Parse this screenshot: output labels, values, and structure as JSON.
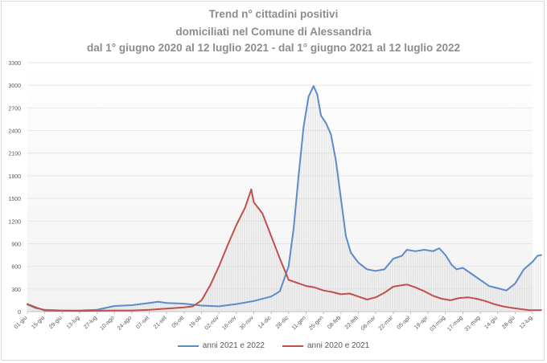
{
  "chart_data": {
    "type": "line",
    "title_lines": [
      "Trend n° cittadini positivi",
      "domiciliati nel Comune di Alessandria",
      "dal 1° giugno 2020 al 12 luglio 2021 - dal 1° giugno 2021 al 12 luglio 2022"
    ],
    "ylim": [
      0,
      3300
    ],
    "yticks": [
      0,
      300,
      600,
      900,
      1200,
      1500,
      1800,
      2100,
      2400,
      2700,
      3000,
      3300
    ],
    "x_tick_labels": [
      "01-giu",
      "15-giu",
      "29-giu",
      "13-lug",
      "27-lug",
      "10-ago",
      "24-ago",
      "07-set",
      "21-set",
      "05-ott",
      "19-ott",
      "02-nov",
      "16-nov",
      "30-nov",
      "14-dic",
      "28-dic",
      "11-gen",
      "25-gen",
      "08-feb",
      "22-feb",
      "08-mar",
      "22-mar",
      "05-apr",
      "19-apr",
      "03-mag",
      "17-mag",
      "31-mag",
      "14-giu",
      "28-giu",
      "12-lug"
    ],
    "x_range_days": [
      0,
      406
    ],
    "grid": "horizontal",
    "legend_position": "bottom",
    "series": [
      {
        "name": "anni 2021 e 2022",
        "color": "#5b8cc8",
        "points": [
          [
            0,
            95
          ],
          [
            7,
            45
          ],
          [
            14,
            25
          ],
          [
            28,
            15
          ],
          [
            42,
            15
          ],
          [
            56,
            25
          ],
          [
            70,
            75
          ],
          [
            84,
            85
          ],
          [
            98,
            115
          ],
          [
            105,
            130
          ],
          [
            112,
            115
          ],
          [
            126,
            105
          ],
          [
            140,
            80
          ],
          [
            154,
            70
          ],
          [
            168,
            100
          ],
          [
            182,
            140
          ],
          [
            196,
            200
          ],
          [
            203,
            270
          ],
          [
            210,
            600
          ],
          [
            214,
            1100
          ],
          [
            218,
            1800
          ],
          [
            222,
            2450
          ],
          [
            226,
            2850
          ],
          [
            230,
            2990
          ],
          [
            233,
            2880
          ],
          [
            236,
            2600
          ],
          [
            240,
            2500
          ],
          [
            244,
            2350
          ],
          [
            248,
            2000
          ],
          [
            252,
            1500
          ],
          [
            256,
            1000
          ],
          [
            260,
            780
          ],
          [
            266,
            650
          ],
          [
            273,
            560
          ],
          [
            280,
            540
          ],
          [
            287,
            560
          ],
          [
            294,
            700
          ],
          [
            301,
            740
          ],
          [
            305,
            820
          ],
          [
            312,
            800
          ],
          [
            319,
            820
          ],
          [
            326,
            800
          ],
          [
            331,
            840
          ],
          [
            336,
            750
          ],
          [
            341,
            620
          ],
          [
            345,
            560
          ],
          [
            350,
            580
          ],
          [
            357,
            500
          ],
          [
            364,
            420
          ],
          [
            371,
            340
          ],
          [
            378,
            310
          ],
          [
            385,
            280
          ],
          [
            392,
            370
          ],
          [
            399,
            560
          ],
          [
            406,
            660
          ],
          [
            410,
            740
          ],
          [
            413,
            750
          ]
        ]
      },
      {
        "name": "anni 2020 e 2021",
        "color": "#c0504d",
        "points": [
          [
            0,
            100
          ],
          [
            7,
            55
          ],
          [
            14,
            15
          ],
          [
            28,
            12
          ],
          [
            42,
            10
          ],
          [
            56,
            12
          ],
          [
            70,
            15
          ],
          [
            84,
            15
          ],
          [
            98,
            25
          ],
          [
            112,
            40
          ],
          [
            126,
            55
          ],
          [
            133,
            70
          ],
          [
            140,
            150
          ],
          [
            147,
            350
          ],
          [
            154,
            600
          ],
          [
            161,
            880
          ],
          [
            168,
            1150
          ],
          [
            175,
            1380
          ],
          [
            180,
            1620
          ],
          [
            182,
            1450
          ],
          [
            189,
            1300
          ],
          [
            196,
            1000
          ],
          [
            203,
            700
          ],
          [
            210,
            420
          ],
          [
            217,
            380
          ],
          [
            224,
            340
          ],
          [
            231,
            320
          ],
          [
            238,
            280
          ],
          [
            245,
            260
          ],
          [
            252,
            230
          ],
          [
            259,
            240
          ],
          [
            266,
            200
          ],
          [
            273,
            160
          ],
          [
            280,
            190
          ],
          [
            287,
            250
          ],
          [
            294,
            330
          ],
          [
            301,
            350
          ],
          [
            305,
            360
          ],
          [
            312,
            320
          ],
          [
            319,
            270
          ],
          [
            326,
            210
          ],
          [
            333,
            170
          ],
          [
            340,
            150
          ],
          [
            347,
            180
          ],
          [
            354,
            190
          ],
          [
            361,
            170
          ],
          [
            368,
            140
          ],
          [
            375,
            100
          ],
          [
            382,
            70
          ],
          [
            389,
            50
          ],
          [
            396,
            35
          ],
          [
            403,
            20
          ],
          [
            410,
            18
          ],
          [
            413,
            20
          ]
        ]
      }
    ]
  }
}
